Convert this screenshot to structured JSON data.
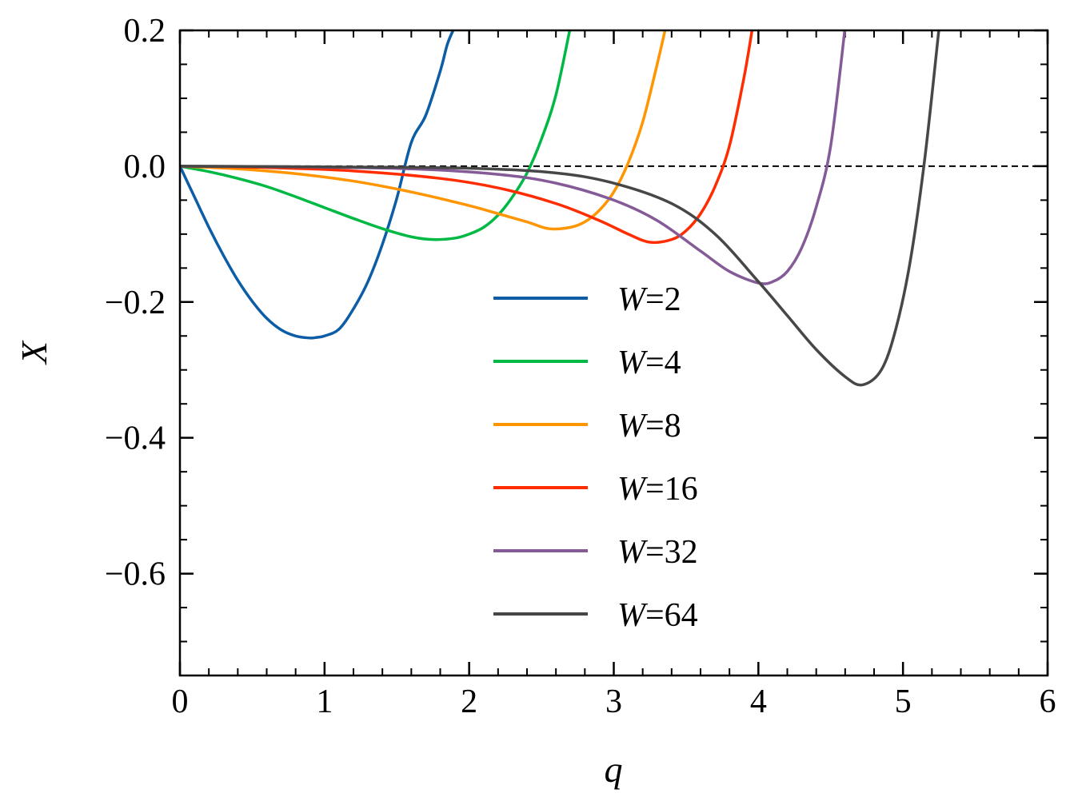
{
  "chart_data": {
    "type": "line",
    "xlabel": "q",
    "ylabel": "X",
    "xlim": [
      0,
      6
    ],
    "ylim": [
      -0.75,
      0.2
    ],
    "xticks": [
      0,
      1,
      2,
      3,
      4,
      5,
      6
    ],
    "xtick_labels": [
      "0",
      "1",
      "2",
      "3",
      "4",
      "5",
      "6"
    ],
    "yticks": [
      0.2,
      0.0,
      -0.2,
      -0.4,
      -0.6
    ],
    "ytick_labels": [
      "0.2",
      "0.0",
      "−0.2",
      "−0.4",
      "−0.6"
    ],
    "reference_line": {
      "y": 0,
      "style": "dashed",
      "color": "#000000"
    },
    "grid": false,
    "legend_position": "center",
    "series": [
      {
        "name": "W=2",
        "w_label": "W",
        "w_value": "=2",
        "color": "#0C5DA5",
        "x": [
          0,
          0.1,
          0.2,
          0.3,
          0.4,
          0.5,
          0.6,
          0.7,
          0.8,
          0.9,
          0.95,
          1.0,
          1.1,
          1.2,
          1.3,
          1.4,
          1.5,
          1.6,
          1.7,
          1.8,
          1.85,
          1.9
        ],
        "y": [
          0,
          -0.045,
          -0.09,
          -0.131,
          -0.168,
          -0.199,
          -0.224,
          -0.241,
          -0.25,
          -0.253,
          -0.252,
          -0.25,
          -0.24,
          -0.21,
          -0.17,
          -0.115,
          -0.047,
          0.035,
          0.075,
          0.14,
          0.18,
          0.205
        ]
      },
      {
        "name": "W=4",
        "w_label": "W",
        "w_value": "=4",
        "color": "#00B945",
        "x": [
          0,
          0.2,
          0.4,
          0.6,
          0.8,
          1.0,
          1.2,
          1.4,
          1.6,
          1.75,
          1.9,
          2.0,
          2.1,
          2.2,
          2.3,
          2.4,
          2.5,
          2.6,
          2.7
        ],
        "y": [
          0,
          -0.008,
          -0.018,
          -0.03,
          -0.045,
          -0.061,
          -0.077,
          -0.092,
          -0.104,
          -0.108,
          -0.106,
          -0.1,
          -0.09,
          -0.072,
          -0.045,
          -0.01,
          0.04,
          0.105,
          0.205
        ]
      },
      {
        "name": "W=8",
        "w_label": "W",
        "w_value": "=8",
        "color": "#FF9500",
        "x": [
          0,
          0.4,
          0.8,
          1.2,
          1.6,
          2.0,
          2.2,
          2.4,
          2.55,
          2.7,
          2.8,
          2.9,
          3.0,
          3.1,
          3.2,
          3.3,
          3.36
        ],
        "y": [
          0,
          -0.004,
          -0.011,
          -0.022,
          -0.038,
          -0.058,
          -0.07,
          -0.082,
          -0.092,
          -0.09,
          -0.082,
          -0.065,
          -0.038,
          0.005,
          0.065,
          0.15,
          0.205
        ]
      },
      {
        "name": "W=16",
        "w_label": "W",
        "w_value": "=16",
        "color": "#FF2C00",
        "x": [
          0,
          0.6,
          1.2,
          1.8,
          2.2,
          2.6,
          2.9,
          3.1,
          3.25,
          3.4,
          3.5,
          3.6,
          3.7,
          3.8,
          3.9,
          3.96
        ],
        "y": [
          0,
          -0.002,
          -0.007,
          -0.018,
          -0.032,
          -0.055,
          -0.08,
          -0.1,
          -0.112,
          -0.108,
          -0.095,
          -0.07,
          -0.03,
          0.03,
          0.13,
          0.205
        ]
      },
      {
        "name": "W=32",
        "w_label": "W",
        "w_value": "=32",
        "color": "#845B97",
        "x": [
          0,
          0.8,
          1.6,
          2.2,
          2.6,
          3.0,
          3.3,
          3.6,
          3.8,
          4.0,
          4.1,
          4.2,
          4.3,
          4.4,
          4.5,
          4.6
        ],
        "y": [
          0,
          -0.001,
          -0.004,
          -0.012,
          -0.025,
          -0.05,
          -0.08,
          -0.125,
          -0.155,
          -0.172,
          -0.17,
          -0.155,
          -0.12,
          -0.06,
          0.03,
          0.205
        ]
      },
      {
        "name": "W=64",
        "w_label": "W",
        "w_value": "=64",
        "color": "#474747",
        "x": [
          0,
          1.0,
          2.0,
          2.6,
          3.0,
          3.4,
          3.7,
          4.0,
          4.2,
          4.4,
          4.6,
          4.72,
          4.85,
          4.95,
          5.05,
          5.15,
          5.25
        ],
        "y": [
          0,
          -0.001,
          -0.003,
          -0.01,
          -0.025,
          -0.055,
          -0.1,
          -0.17,
          -0.22,
          -0.27,
          -0.31,
          -0.322,
          -0.3,
          -0.24,
          -0.14,
          0.01,
          0.205
        ]
      }
    ]
  }
}
